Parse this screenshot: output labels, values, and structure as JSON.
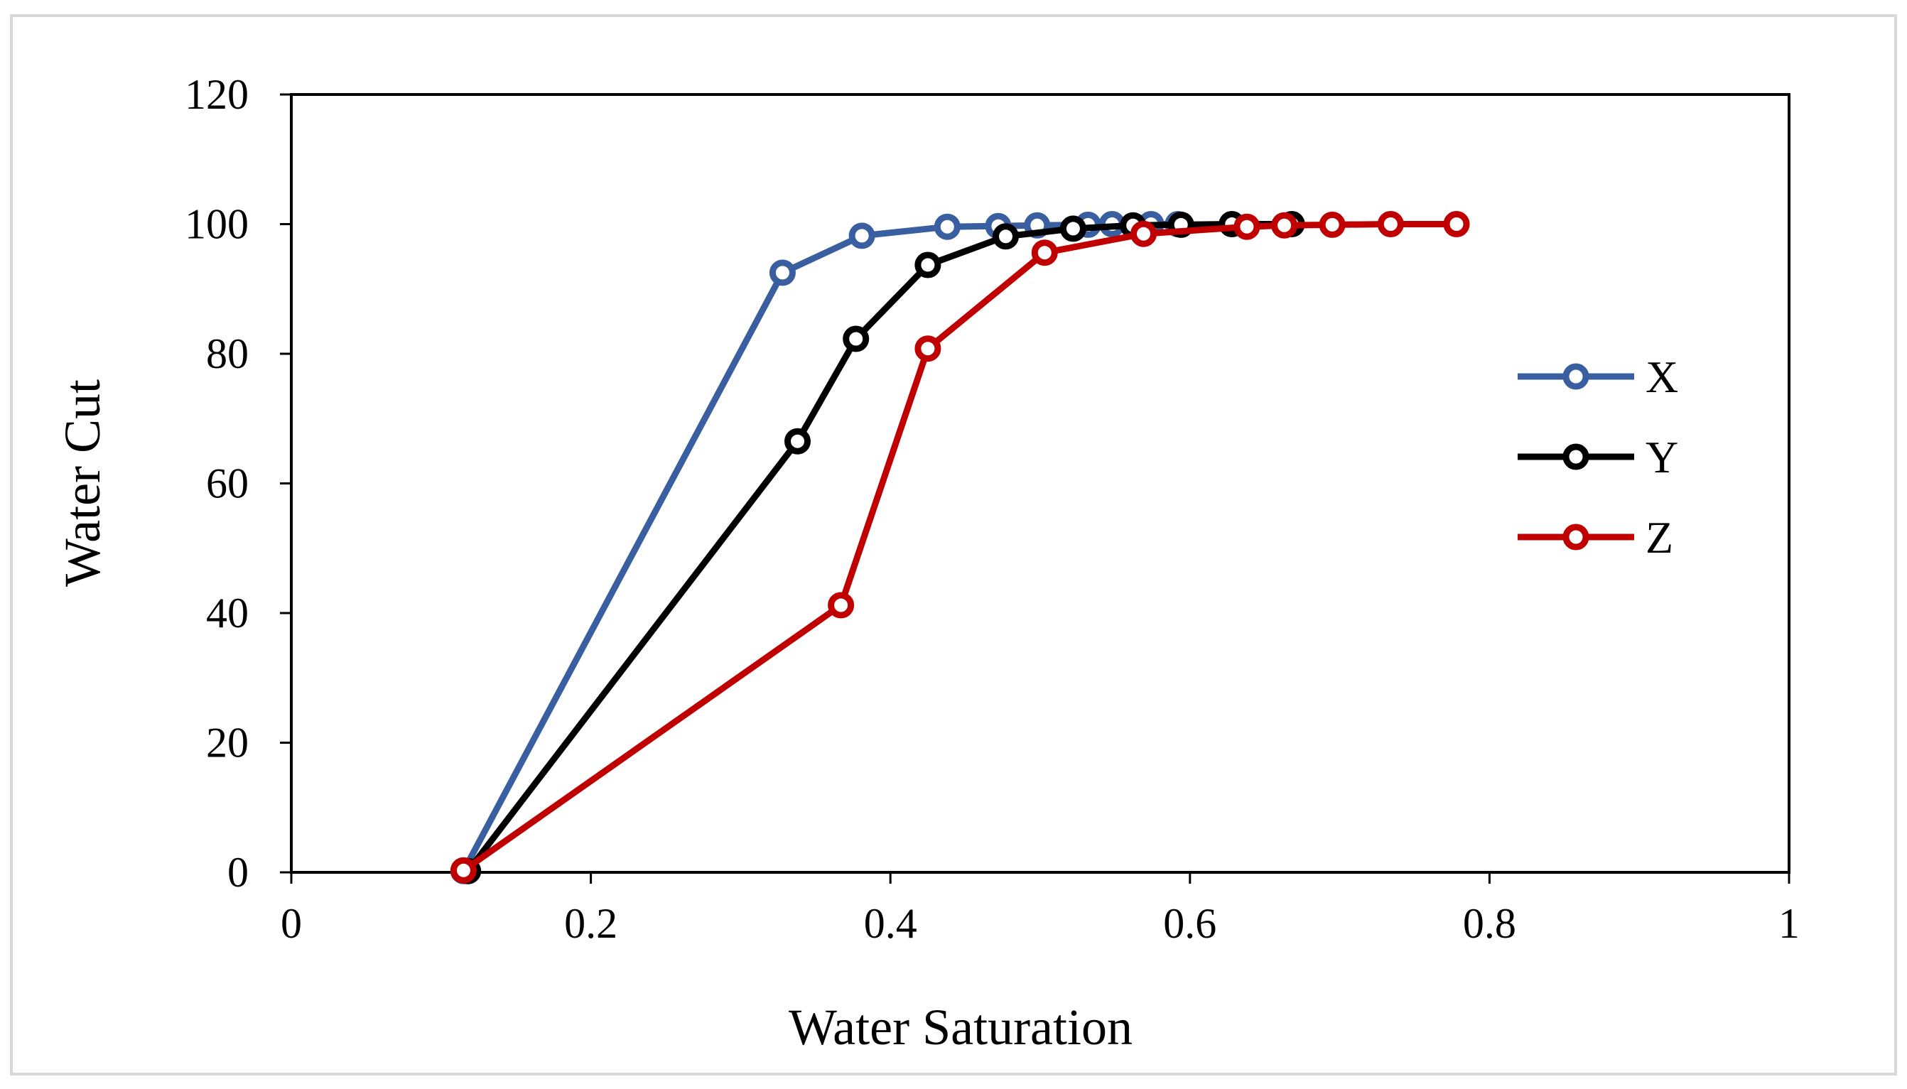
{
  "chart_data": {
    "type": "line",
    "title": "",
    "xlabel": "Water Saturation",
    "ylabel": "Water Cut",
    "xlim": [
      0,
      1
    ],
    "ylim": [
      0,
      120
    ],
    "x_ticks": [
      0,
      0.2,
      0.4,
      0.6,
      0.8,
      1
    ],
    "x_tick_labels": [
      "0",
      "0.2",
      "0.4",
      "0.6",
      "0.8",
      "1"
    ],
    "y_ticks": [
      0,
      20,
      40,
      60,
      80,
      100,
      120
    ],
    "y_tick_labels": [
      "0",
      "20",
      "40",
      "60",
      "80",
      "100",
      "120"
    ],
    "grid": false,
    "legend_position": "right",
    "series": [
      {
        "name": "X",
        "color": "#3a5fa0",
        "points": [
          [
            0.115,
            0.2
          ],
          [
            0.328,
            92.5
          ],
          [
            0.381,
            98.2
          ],
          [
            0.438,
            99.6
          ],
          [
            0.472,
            99.7
          ],
          [
            0.498,
            99.8
          ],
          [
            0.532,
            99.9
          ],
          [
            0.548,
            100
          ],
          [
            0.574,
            100
          ],
          [
            0.592,
            100
          ]
        ]
      },
      {
        "name": "Y",
        "color": "#000000",
        "points": [
          [
            0.118,
            0.2
          ],
          [
            0.338,
            66.5
          ],
          [
            0.377,
            82.3
          ],
          [
            0.425,
            93.7
          ],
          [
            0.477,
            98.1
          ],
          [
            0.522,
            99.3
          ],
          [
            0.562,
            99.8
          ],
          [
            0.594,
            99.9
          ],
          [
            0.628,
            100
          ],
          [
            0.668,
            100
          ]
        ]
      },
      {
        "name": "Z",
        "color": "#c00000",
        "points": [
          [
            0.115,
            0.3
          ],
          [
            0.367,
            41.2
          ],
          [
            0.425,
            80.8
          ],
          [
            0.503,
            95.6
          ],
          [
            0.569,
            98.5
          ],
          [
            0.638,
            99.6
          ],
          [
            0.663,
            99.8
          ],
          [
            0.695,
            99.9
          ],
          [
            0.734,
            100
          ],
          [
            0.778,
            100
          ]
        ]
      }
    ]
  }
}
